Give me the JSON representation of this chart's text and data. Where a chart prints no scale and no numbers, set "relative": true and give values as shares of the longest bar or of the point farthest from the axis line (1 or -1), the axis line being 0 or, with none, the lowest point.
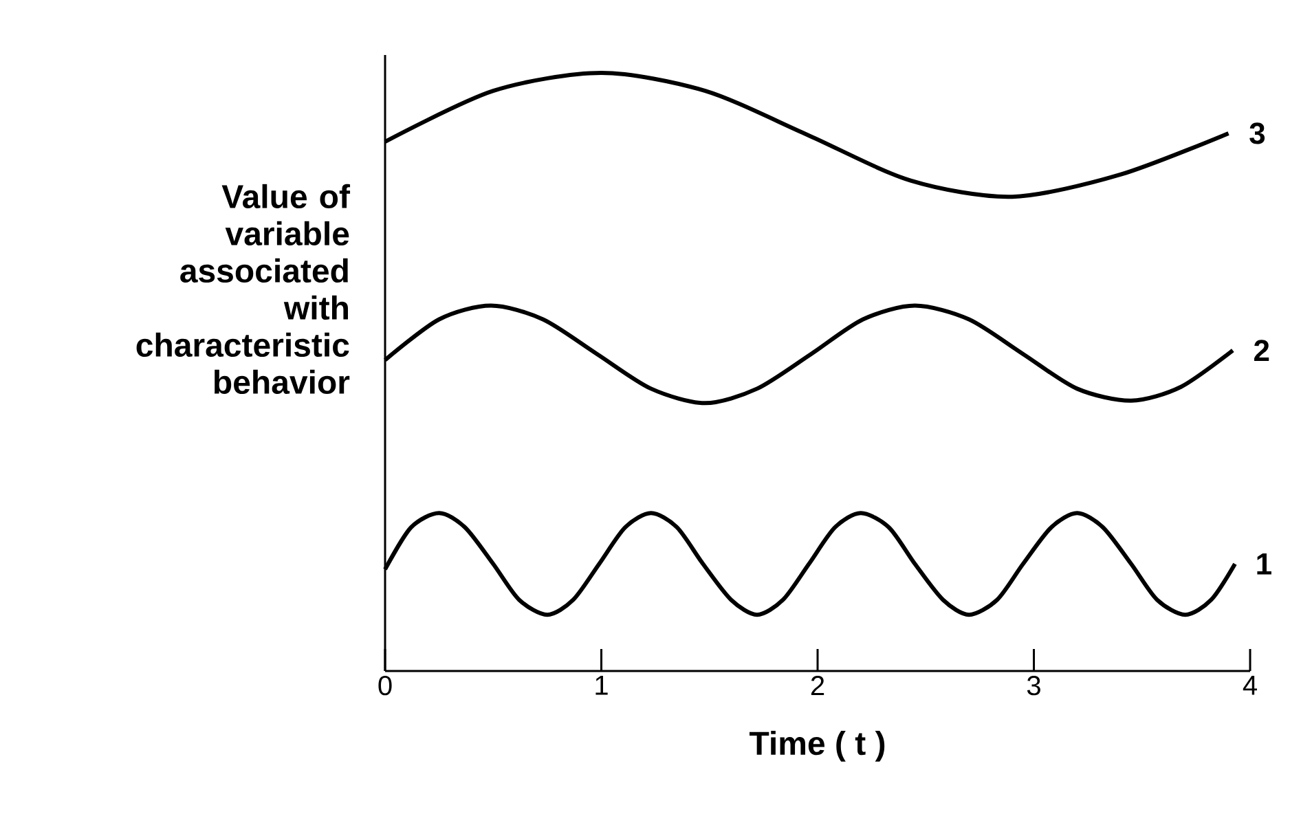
{
  "chart_data": {
    "type": "line",
    "relative": true,
    "ylabel": "Value of variable associated with characteristic behavior",
    "xlabel": "Time ( t )",
    "xlim": [
      0,
      4
    ],
    "xticks": [
      0,
      1,
      2,
      3,
      4
    ],
    "series": [
      {
        "name": "1",
        "color": "#000000",
        "x": [
          0,
          0.12,
          0.25,
          0.37,
          0.5,
          0.62,
          0.75,
          0.87,
          0.99,
          1.11,
          1.23,
          1.35,
          1.47,
          1.6,
          1.72,
          1.84,
          1.96,
          2.08,
          2.2,
          2.33,
          2.45,
          2.58,
          2.7,
          2.83,
          2.95,
          3.08,
          3.2,
          3.32,
          3.45,
          3.57,
          3.7,
          3.82,
          3.93
        ],
        "values": [
          0.17,
          0.24,
          0.264,
          0.24,
          0.179,
          0.119,
          0.094,
          0.119,
          0.179,
          0.24,
          0.264,
          0.24,
          0.179,
          0.119,
          0.094,
          0.119,
          0.179,
          0.24,
          0.264,
          0.24,
          0.179,
          0.119,
          0.094,
          0.119,
          0.179,
          0.24,
          0.264,
          0.24,
          0.179,
          0.119,
          0.094,
          0.119,
          0.179
        ]
      },
      {
        "name": "2",
        "color": "#000000",
        "x": [
          0,
          0.25,
          0.49,
          0.73,
          0.98,
          1.23,
          1.48,
          1.72,
          1.97,
          2.21,
          2.45,
          2.7,
          2.95,
          3.2,
          3.45,
          3.68,
          3.92
        ],
        "values": [
          0.52,
          0.588,
          0.611,
          0.588,
          0.53,
          0.472,
          0.448,
          0.472,
          0.53,
          0.588,
          0.611,
          0.588,
          0.53,
          0.472,
          0.452,
          0.475,
          0.536
        ]
      },
      {
        "name": "3",
        "color": "#000000",
        "x": [
          0,
          0.5,
          1.0,
          1.48,
          1.95,
          2.43,
          2.9,
          3.4,
          3.9
        ],
        "values": [
          0.885,
          0.97,
          1.0,
          0.97,
          0.897,
          0.82,
          0.793,
          0.83,
          0.899
        ]
      }
    ]
  }
}
